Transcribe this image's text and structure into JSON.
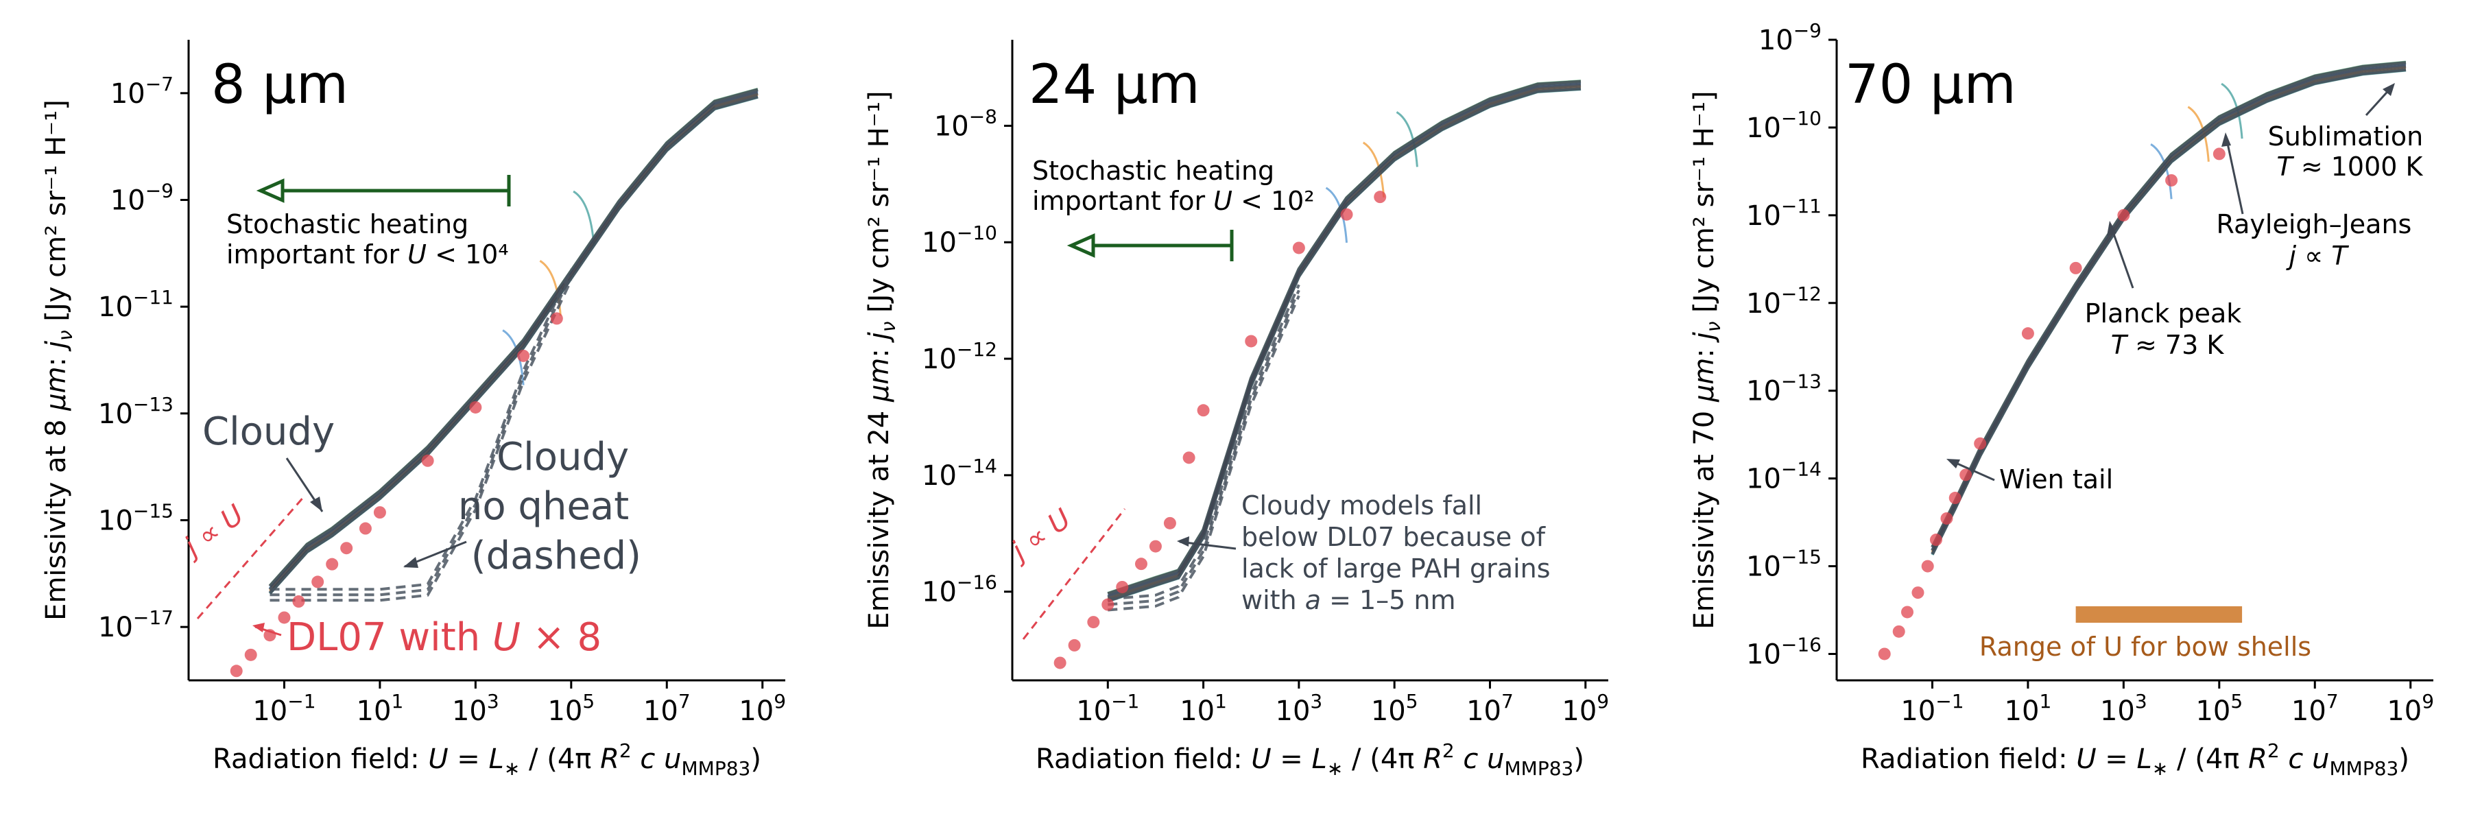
{
  "colors": {
    "axis": "#000000",
    "cloudy": "#3f4752",
    "cloudy_dashed": "#4a5560",
    "dl07": "#e0444f",
    "arrow_green": "#1b5e20",
    "text_gray": "#3f4752",
    "bow_band": "#d48a45",
    "bow_text": "#a65a1a",
    "curve_green": "#6dbf8a",
    "curve_blue": "#5b9bd5",
    "curve_orange": "#f0a040",
    "curve_teal": "#4aa3a0"
  },
  "chart_data": [
    {
      "type": "line",
      "title": "8 µm",
      "xlabel": "Radiation field: U = L* / (4π R² c u_MMP83)",
      "ylabel": "Emissivity at 8 µm: jν   [Jy cm² sr⁻¹ H⁻¹]",
      "xscale": "log",
      "yscale": "log",
      "xlim": [
        0.001,
        3000000000.0
      ],
      "ylim": [
        1e-18,
        1e-06
      ],
      "xticks": [
        {
          "v": 0.1,
          "base": "10",
          "exp": "−1"
        },
        {
          "v": 10,
          "base": "10",
          "exp": "1"
        },
        {
          "v": 1000,
          "base": "10",
          "exp": "3"
        },
        {
          "v": 100000,
          "base": "10",
          "exp": "5"
        },
        {
          "v": 10000000,
          "base": "10",
          "exp": "7"
        },
        {
          "v": 1000000000,
          "base": "10",
          "exp": "9"
        }
      ],
      "yticks": [
        {
          "v": 1e-17,
          "base": "10",
          "exp": "−17"
        },
        {
          "v": 1e-15,
          "base": "10",
          "exp": "−15"
        },
        {
          "v": 1e-13,
          "base": "10",
          "exp": "−13"
        },
        {
          "v": 1e-11,
          "base": "10",
          "exp": "−11"
        },
        {
          "v": 1e-09,
          "base": "10",
          "exp": "−9"
        },
        {
          "v": 1e-07,
          "base": "10",
          "exp": "−7"
        }
      ],
      "series": [
        {
          "name": "Cloudy",
          "style": "solid",
          "x": [
            0.05,
            0.3,
            1,
            10,
            100,
            1000,
            10000,
            100000,
            1000000,
            10000000,
            100000000,
            800000000
          ],
          "y": [
            5e-17,
            3e-16,
            6e-16,
            3e-15,
            2e-14,
            2e-13,
            2e-12,
            4e-11,
            8e-10,
            1e-08,
            6e-08,
            1e-07
          ]
        },
        {
          "name": "Cloudy no qheat (dashed)",
          "style": "dashed",
          "x": [
            0.05,
            1,
            10,
            100,
            1000,
            10000,
            100000
          ],
          "y": [
            4e-17,
            4e-17,
            4e-17,
            5e-17,
            2e-15,
            5e-13,
            4e-11
          ]
        },
        {
          "name": "DL07 with U × 8",
          "style": "points",
          "x": [
            0.01,
            0.02,
            0.05,
            0.1,
            0.2,
            0.5,
            1,
            2,
            5,
            10,
            100,
            1000,
            10000,
            50000
          ],
          "y": [
            1.5e-18,
            3e-18,
            7e-18,
            1.5e-17,
            3e-17,
            7e-17,
            1.5e-16,
            3e-16,
            7e-16,
            1.4e-15,
            1.3e-14,
            1.3e-13,
            1.2e-12,
            6e-12
          ]
        }
      ],
      "annotations": {
        "stochastic": "Stochastic heating important for U < 10⁴",
        "cloudy": "Cloudy",
        "cloudy_no_qheat": [
          "Cloudy",
          "no qheat",
          "(dashed)"
        ],
        "dl07": "DL07 with U × 8",
        "j_prop": "j ∝ U"
      }
    },
    {
      "type": "line",
      "title": "24 µm",
      "xlabel": "Radiation field: U = L* / (4π R² c u_MMP83)",
      "ylabel": "Emissivity at 24 µm: jν   [Jy cm² sr⁻¹ H⁻¹]",
      "xscale": "log",
      "yscale": "log",
      "xlim": [
        0.001,
        3000000000.0
      ],
      "ylim": [
        3e-18,
        3e-07
      ],
      "xticks": [
        {
          "v": 0.1,
          "base": "10",
          "exp": "−1"
        },
        {
          "v": 10,
          "base": "10",
          "exp": "1"
        },
        {
          "v": 1000,
          "base": "10",
          "exp": "3"
        },
        {
          "v": 100000,
          "base": "10",
          "exp": "5"
        },
        {
          "v": 10000000,
          "base": "10",
          "exp": "7"
        },
        {
          "v": 1000000000,
          "base": "10",
          "exp": "9"
        }
      ],
      "yticks": [
        {
          "v": 1e-16,
          "base": "10",
          "exp": "−16"
        },
        {
          "v": 1e-14,
          "base": "10",
          "exp": "−14"
        },
        {
          "v": 1e-12,
          "base": "10",
          "exp": "−12"
        },
        {
          "v": 1e-10,
          "base": "10",
          "exp": "−10"
        },
        {
          "v": 1e-08,
          "base": "10",
          "exp": "−8"
        }
      ],
      "series": [
        {
          "name": "Cloudy",
          "style": "solid",
          "x": [
            0.1,
            1,
            3,
            10,
            100,
            1000,
            10000,
            100000,
            1000000,
            10000000,
            100000000,
            800000000
          ],
          "y": [
            8e-17,
            1.5e-16,
            2e-16,
            1e-15,
            4e-13,
            3e-11,
            5e-10,
            3e-09,
            1e-08,
            2.5e-08,
            4.5e-08,
            5e-08
          ]
        },
        {
          "name": "Cloudy no qheat (dashed)",
          "style": "dashed",
          "x": [
            0.1,
            1,
            3,
            10,
            100,
            1000
          ],
          "y": [
            6e-17,
            7e-17,
            1e-16,
            5e-16,
            2e-13,
            1.5e-11
          ]
        },
        {
          "name": "DL07 with U × 8",
          "style": "points",
          "x": [
            0.01,
            0.02,
            0.05,
            0.1,
            0.2,
            0.5,
            1,
            2,
            5,
            10,
            100,
            1000,
            10000,
            50000
          ],
          "y": [
            6e-18,
            1.2e-17,
            3e-17,
            6e-17,
            1.2e-16,
            3e-16,
            6e-16,
            1.5e-15,
            2e-14,
            1.3e-13,
            2e-12,
            8e-11,
            3e-10,
            6e-10
          ]
        }
      ],
      "annotations": {
        "stochastic": "Stochastic heating important for U < 10²",
        "cloudy_note": [
          "Cloudy models fall",
          "below DL07 because of",
          "lack of large PAH grains",
          "with a = 1–5 nm"
        ],
        "j_prop": "j ∝ U"
      }
    },
    {
      "type": "line",
      "title": "70 µm",
      "xlabel": "Radiation field: U = L* / (4π R² c u_MMP83)",
      "ylabel": "Emissivity at 70 µm: jν   [Jy cm² sr⁻¹ H⁻¹]",
      "xscale": "log",
      "yscale": "log",
      "xlim": [
        0.001,
        3000000000.0
      ],
      "ylim": [
        5e-17,
        1e-09
      ],
      "xticks": [
        {
          "v": 0.1,
          "base": "10",
          "exp": "−1"
        },
        {
          "v": 10,
          "base": "10",
          "exp": "1"
        },
        {
          "v": 1000,
          "base": "10",
          "exp": "3"
        },
        {
          "v": 100000,
          "base": "10",
          "exp": "5"
        },
        {
          "v": 10000000,
          "base": "10",
          "exp": "7"
        },
        {
          "v": 1000000000,
          "base": "10",
          "exp": "9"
        }
      ],
      "yticks": [
        {
          "v": 1e-16,
          "base": "10",
          "exp": "−16"
        },
        {
          "v": 1e-15,
          "base": "10",
          "exp": "−15"
        },
        {
          "v": 1e-14,
          "base": "10",
          "exp": "−14"
        },
        {
          "v": 1e-13,
          "base": "10",
          "exp": "−13"
        },
        {
          "v": 1e-12,
          "base": "10",
          "exp": "−12"
        },
        {
          "v": 1e-11,
          "base": "10",
          "exp": "−11"
        },
        {
          "v": 1e-10,
          "base": "10",
          "exp": "−10"
        },
        {
          "v": 1e-09,
          "base": "10",
          "exp": "−9"
        }
      ],
      "series": [
        {
          "name": "Cloudy",
          "style": "solid",
          "x": [
            0.1,
            0.3,
            1,
            3,
            10,
            100,
            1000,
            10000,
            100000,
            1000000,
            10000000,
            100000000,
            800000000
          ],
          "y": [
            1.5e-15,
            5e-15,
            2e-14,
            6e-14,
            2e-13,
            1.5e-12,
            1e-11,
            4.5e-11,
            1.2e-10,
            2.2e-10,
            3.5e-10,
            4.5e-10,
            5e-10
          ]
        },
        {
          "name": "DL07 with U × 8",
          "style": "points",
          "x": [
            0.01,
            0.02,
            0.03,
            0.05,
            0.08,
            0.12,
            0.2,
            0.3,
            0.5,
            1,
            10,
            100,
            1000,
            10000,
            100000
          ],
          "y": [
            1e-16,
            1.8e-16,
            3e-16,
            5e-16,
            1e-15,
            2e-15,
            3.5e-15,
            6e-15,
            1.1e-14,
            2.5e-14,
            4.5e-13,
            2.5e-12,
            1e-11,
            2.5e-11,
            5e-11
          ]
        }
      ],
      "annotations": {
        "sublimation": [
          "Sublimation",
          "T ≈ 1000 K"
        ],
        "rayleigh": [
          "Rayleigh–Jeans",
          "j ∝ T"
        ],
        "planck": [
          "Planck peak",
          "T ≈ 73 K"
        ],
        "wien": "Wien tail",
        "bow_range": "Range of U for bow shells",
        "bow_range_U": [
          100,
          300000
        ]
      }
    }
  ]
}
